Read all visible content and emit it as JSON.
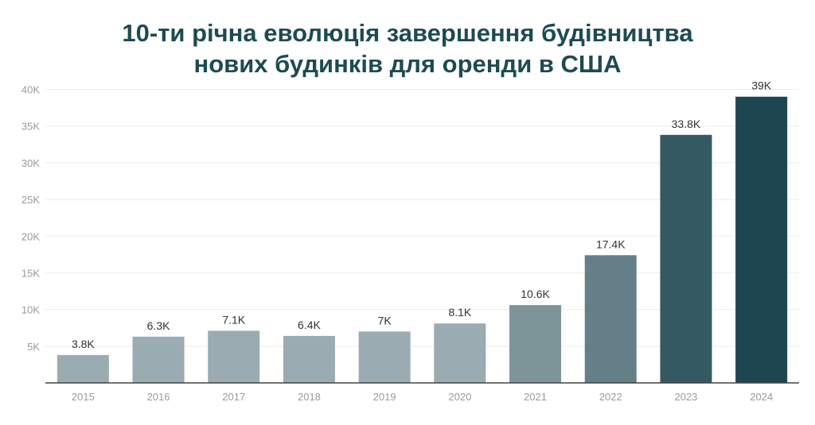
{
  "chart_data": {
    "type": "bar",
    "title": "10-ти річна еволюція завершення будівництва нових будинків для оренди в США",
    "title_lines": [
      "10-ти річна еволюція завершення будівництва",
      "нових будинків для оренди в США"
    ],
    "categories": [
      "2015",
      "2016",
      "2017",
      "2018",
      "2019",
      "2020",
      "2021",
      "2022",
      "2023",
      "2024"
    ],
    "values": [
      3800,
      6300,
      7100,
      6400,
      7000,
      8100,
      10600,
      17400,
      33800,
      39000
    ],
    "data_labels": [
      "3.8K",
      "6.3K",
      "7.1K",
      "6.4K",
      "7K",
      "8.1K",
      "10.6K",
      "17.4K",
      "33.8K",
      "39K"
    ],
    "colors": [
      "#9aabb1",
      "#9aabb1",
      "#9aabb1",
      "#9aabb1",
      "#9aabb1",
      "#9aabb1",
      "#7d9499",
      "#647f87",
      "#355962",
      "#1e4651"
    ],
    "yticks": [
      5000,
      10000,
      15000,
      20000,
      25000,
      30000,
      35000,
      40000
    ],
    "ytick_labels": [
      "5K",
      "10K",
      "15K",
      "20K",
      "25K",
      "30K",
      "35K",
      "40K"
    ],
    "ylim": [
      0,
      40000
    ],
    "xlabel": "",
    "ylabel": "",
    "grid": true,
    "legend": "none"
  }
}
